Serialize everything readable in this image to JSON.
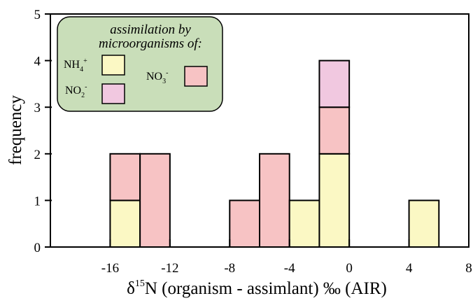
{
  "chart_data": {
    "type": "bar",
    "subtype": "stacked histogram",
    "xlabel": {
      "prefix": "δ",
      "sup": "15",
      "rest": "N  (organism - assimlant) ‰ (AIR)"
    },
    "ylabel": "frequency",
    "xlim": [
      -20,
      8
    ],
    "ylim": [
      0,
      5
    ],
    "x_ticks": [
      "-16",
      "-12",
      "-8",
      "-4",
      "0",
      "4",
      "8"
    ],
    "x_tick_values": [
      -16,
      -12,
      -8,
      -4,
      0,
      4,
      8
    ],
    "y_ticks": [
      "0",
      "1",
      "2",
      "3",
      "4",
      "5"
    ],
    "y_tick_values": [
      0,
      1,
      2,
      3,
      4,
      5
    ],
    "bin_width": 2,
    "stack_order": [
      "NH4+",
      "NO3-",
      "NO2-"
    ],
    "series": [
      {
        "key": "NH4+",
        "color": "#fbf8c4",
        "bins": [
          {
            "x": -16,
            "count": 1
          },
          {
            "x": -4,
            "count": 1
          },
          {
            "x": -2,
            "count": 2
          },
          {
            "x": 4,
            "count": 1
          }
        ]
      },
      {
        "key": "NO3-",
        "color": "#f7c3c4",
        "bins": [
          {
            "x": -16,
            "count": 1
          },
          {
            "x": -14,
            "count": 2
          },
          {
            "x": -8,
            "count": 1
          },
          {
            "x": -6,
            "count": 2
          },
          {
            "x": -2,
            "count": 1
          }
        ]
      },
      {
        "key": "NO2-",
        "color": "#f1c8e0",
        "bins": [
          {
            "x": -2,
            "count": 1
          }
        ]
      }
    ],
    "legend": {
      "title_line1": "assimilation by",
      "title_line2": "microorganisms of:",
      "background": "#c9deb9",
      "placement": "top-left",
      "entries": [
        {
          "key": "NH4+",
          "base": "NH",
          "sub": "4",
          "sup": "+",
          "color": "#fbf8c4"
        },
        {
          "key": "NO2-",
          "base": "NO",
          "sub": "2",
          "sup": "-",
          "color": "#f1c8e0"
        },
        {
          "key": "NO3-",
          "base": "NO",
          "sub": "3",
          "sup": "-",
          "color": "#f7c3c4"
        }
      ]
    }
  }
}
